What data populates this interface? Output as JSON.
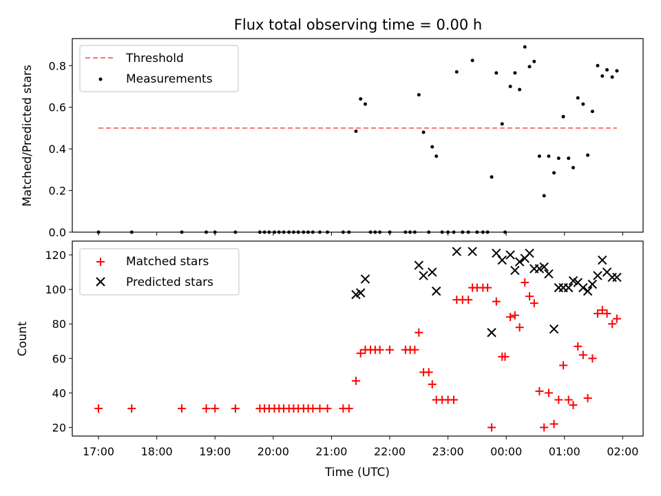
{
  "title": "Flux total observing time = 0.00 h",
  "colors": {
    "threshold": "#ff7070",
    "matched": "#ff0000",
    "predicted": "#000000",
    "measurement": "#000000"
  },
  "chart_data": [
    {
      "type": "scatter",
      "ylabel": "Matched/Predicted stars",
      "xlabel": "",
      "xlim": [
        16.55,
        26.35
      ],
      "ylim": [
        0,
        0.93
      ],
      "yticks": [
        0.0,
        0.2,
        0.4,
        0.6,
        0.8
      ],
      "ytick_labels": [
        "0.0",
        "0.2",
        "0.4",
        "0.6",
        "0.8"
      ],
      "legend": "top-left",
      "threshold": {
        "name": "Threshold",
        "y": 0.5,
        "x": [
          17.0,
          25.9
        ]
      },
      "series": [
        {
          "name": "Measurements",
          "points": [
            [
              17.0,
              0
            ],
            [
              17.57,
              0
            ],
            [
              18.43,
              0
            ],
            [
              18.85,
              0
            ],
            [
              19.0,
              0
            ],
            [
              19.35,
              0
            ],
            [
              19.77,
              0
            ],
            [
              19.85,
              0
            ],
            [
              19.93,
              0
            ],
            [
              20.02,
              0
            ],
            [
              20.1,
              0
            ],
            [
              20.18,
              0
            ],
            [
              20.27,
              0
            ],
            [
              20.35,
              0
            ],
            [
              20.43,
              0
            ],
            [
              20.52,
              0
            ],
            [
              20.6,
              0
            ],
            [
              20.68,
              0
            ],
            [
              20.8,
              0
            ],
            [
              20.93,
              0
            ],
            [
              21.2,
              0
            ],
            [
              21.3,
              0
            ],
            [
              21.42,
              0.485
            ],
            [
              21.5,
              0.64
            ],
            [
              21.58,
              0.615
            ],
            [
              21.67,
              0
            ],
            [
              21.75,
              0
            ],
            [
              21.83,
              0
            ],
            [
              22.0,
              0
            ],
            [
              22.27,
              0
            ],
            [
              22.35,
              0
            ],
            [
              22.43,
              0
            ],
            [
              22.5,
              0.66
            ],
            [
              22.58,
              0.48
            ],
            [
              22.67,
              0
            ],
            [
              22.73,
              0.41
            ],
            [
              22.8,
              0.365
            ],
            [
              22.9,
              0
            ],
            [
              23.0,
              0
            ],
            [
              23.1,
              0
            ],
            [
              23.15,
              0.77
            ],
            [
              23.25,
              0
            ],
            [
              23.35,
              0
            ],
            [
              23.42,
              0.825
            ],
            [
              23.5,
              0
            ],
            [
              23.6,
              0
            ],
            [
              23.68,
              0
            ],
            [
              23.75,
              0.265
            ],
            [
              23.83,
              0.765
            ],
            [
              23.93,
              0.52
            ],
            [
              23.98,
              0
            ],
            [
              24.07,
              0.7
            ],
            [
              24.15,
              0.765
            ],
            [
              24.23,
              0.685
            ],
            [
              24.32,
              0.89
            ],
            [
              24.4,
              0.795
            ],
            [
              24.48,
              0.82
            ],
            [
              24.57,
              0.365
            ],
            [
              24.65,
              0.175
            ],
            [
              24.73,
              0.365
            ],
            [
              24.82,
              0.285
            ],
            [
              24.9,
              0.355
            ],
            [
              24.98,
              0.555
            ],
            [
              25.07,
              0.355
            ],
            [
              25.15,
              0.31
            ],
            [
              25.23,
              0.645
            ],
            [
              25.32,
              0.615
            ],
            [
              25.4,
              0.37
            ],
            [
              25.48,
              0.58
            ],
            [
              25.57,
              0.8
            ],
            [
              25.65,
              0.75
            ],
            [
              25.73,
              0.78
            ],
            [
              25.82,
              0.745
            ],
            [
              25.9,
              0.775
            ]
          ]
        }
      ]
    },
    {
      "type": "scatter",
      "ylabel": "Count",
      "xlabel": "Time (UTC)",
      "xlim": [
        16.55,
        26.35
      ],
      "ylim": [
        15,
        128
      ],
      "yticks": [
        20,
        40,
        60,
        80,
        100,
        120
      ],
      "ytick_labels": [
        "20",
        "40",
        "60",
        "80",
        "100",
        "120"
      ],
      "xticks": [
        17,
        18,
        19,
        20,
        21,
        22,
        23,
        24,
        25,
        26
      ],
      "xtick_labels": [
        "17:00",
        "18:00",
        "19:00",
        "20:00",
        "21:00",
        "22:00",
        "23:00",
        "00:00",
        "01:00",
        "02:00"
      ],
      "legend": "top-left",
      "series": [
        {
          "name": "Matched stars",
          "marker": "plus",
          "points": [
            [
              17.0,
              31
            ],
            [
              17.57,
              31
            ],
            [
              18.43,
              31
            ],
            [
              18.85,
              31
            ],
            [
              19.0,
              31
            ],
            [
              19.35,
              31
            ],
            [
              19.77,
              31
            ],
            [
              19.85,
              31
            ],
            [
              19.93,
              31
            ],
            [
              20.02,
              31
            ],
            [
              20.1,
              31
            ],
            [
              20.18,
              31
            ],
            [
              20.27,
              31
            ],
            [
              20.35,
              31
            ],
            [
              20.43,
              31
            ],
            [
              20.52,
              31
            ],
            [
              20.6,
              31
            ],
            [
              20.68,
              31
            ],
            [
              20.8,
              31
            ],
            [
              20.93,
              31
            ],
            [
              21.2,
              31
            ],
            [
              21.3,
              31
            ],
            [
              21.42,
              47
            ],
            [
              21.5,
              63
            ],
            [
              21.58,
              65
            ],
            [
              21.67,
              65
            ],
            [
              21.75,
              65
            ],
            [
              21.83,
              65
            ],
            [
              22.0,
              65
            ],
            [
              22.27,
              65
            ],
            [
              22.35,
              65
            ],
            [
              22.43,
              65
            ],
            [
              22.5,
              75
            ],
            [
              22.58,
              52
            ],
            [
              22.67,
              52
            ],
            [
              22.73,
              45
            ],
            [
              22.8,
              36
            ],
            [
              22.9,
              36
            ],
            [
              23.0,
              36
            ],
            [
              23.1,
              36
            ],
            [
              23.15,
              94
            ],
            [
              23.25,
              94
            ],
            [
              23.35,
              94
            ],
            [
              23.42,
              101
            ],
            [
              23.5,
              101
            ],
            [
              23.6,
              101
            ],
            [
              23.68,
              101
            ],
            [
              23.75,
              20
            ],
            [
              23.83,
              93
            ],
            [
              23.93,
              61
            ],
            [
              23.98,
              61
            ],
            [
              24.07,
              84
            ],
            [
              24.15,
              85
            ],
            [
              24.23,
              78
            ],
            [
              24.32,
              104
            ],
            [
              24.4,
              96
            ],
            [
              24.48,
              92
            ],
            [
              24.57,
              41
            ],
            [
              24.65,
              20
            ],
            [
              24.73,
              40
            ],
            [
              24.82,
              22
            ],
            [
              24.9,
              36
            ],
            [
              24.98,
              56
            ],
            [
              25.07,
              36
            ],
            [
              25.15,
              33
            ],
            [
              25.23,
              67
            ],
            [
              25.32,
              62
            ],
            [
              25.4,
              37
            ],
            [
              25.48,
              60
            ],
            [
              25.57,
              86
            ],
            [
              25.65,
              88
            ],
            [
              25.73,
              86
            ],
            [
              25.82,
              80
            ],
            [
              25.9,
              83
            ]
          ]
        },
        {
          "name": "Predicted stars",
          "marker": "x",
          "points": [
            [
              21.42,
              97
            ],
            [
              21.5,
              98
            ],
            [
              21.58,
              106
            ],
            [
              22.5,
              114
            ],
            [
              22.58,
              108
            ],
            [
              22.73,
              110
            ],
            [
              22.8,
              99
            ],
            [
              23.15,
              122
            ],
            [
              23.42,
              122
            ],
            [
              23.75,
              75
            ],
            [
              23.83,
              121
            ],
            [
              23.93,
              117
            ],
            [
              24.07,
              120
            ],
            [
              24.15,
              111
            ],
            [
              24.23,
              116
            ],
            [
              24.32,
              118
            ],
            [
              24.4,
              121
            ],
            [
              24.48,
              112
            ],
            [
              24.57,
              112
            ],
            [
              24.65,
              113
            ],
            [
              24.73,
              109
            ],
            [
              24.82,
              77
            ],
            [
              24.9,
              101
            ],
            [
              24.98,
              101
            ],
            [
              25.07,
              101
            ],
            [
              25.15,
              105
            ],
            [
              25.23,
              104
            ],
            [
              25.32,
              101
            ],
            [
              25.4,
              99
            ],
            [
              25.48,
              103
            ],
            [
              25.57,
              108
            ],
            [
              25.65,
              117
            ],
            [
              25.73,
              110
            ],
            [
              25.82,
              107
            ],
            [
              25.9,
              107
            ]
          ]
        }
      ]
    }
  ]
}
